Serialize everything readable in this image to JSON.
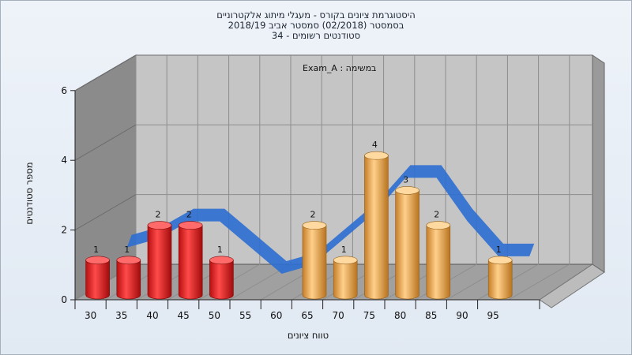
{
  "chart_data": {
    "type": "bar",
    "title_lines": [
      "היסטוגרמת ציונים בקורס - מעגלי מיתוג אלקטרוניים",
      "בסמסטר  (02/2018)  סמסטר אביב 2018/19",
      "סטודנטים רשומים - 34"
    ],
    "annotation": "במשימה : Exam_A",
    "xlabel": "טווח ציונים",
    "ylabel": "מספר סטודנטים",
    "categories": [
      "30",
      "35",
      "40",
      "45",
      "50",
      "55",
      "60",
      "65",
      "70",
      "75",
      "80",
      "85",
      "90",
      "95"
    ],
    "values": [
      1,
      1,
      2,
      2,
      1,
      0,
      0,
      2,
      1,
      4,
      3,
      2,
      0,
      1
    ],
    "y_ticks": [
      0,
      2,
      4,
      6
    ],
    "ylim": [
      0,
      6
    ],
    "bar_colors": [
      "red",
      "red",
      "red",
      "red",
      "red",
      "",
      "",
      "orange",
      "orange",
      "orange",
      "orange",
      "orange",
      "",
      "orange"
    ],
    "overlay": "smoothed distribution ribbon",
    "grid": true,
    "legend": "none",
    "colors": {
      "red_bar": "#e52a2a",
      "orange_bar": "#e8a64e",
      "ribbon_front": "#2f6fd0",
      "ribbon_back": "#5e6470",
      "back_wall": "#c4c4c4",
      "side_wall": "#8a8a8a",
      "floor": "#9f9f9f"
    }
  }
}
